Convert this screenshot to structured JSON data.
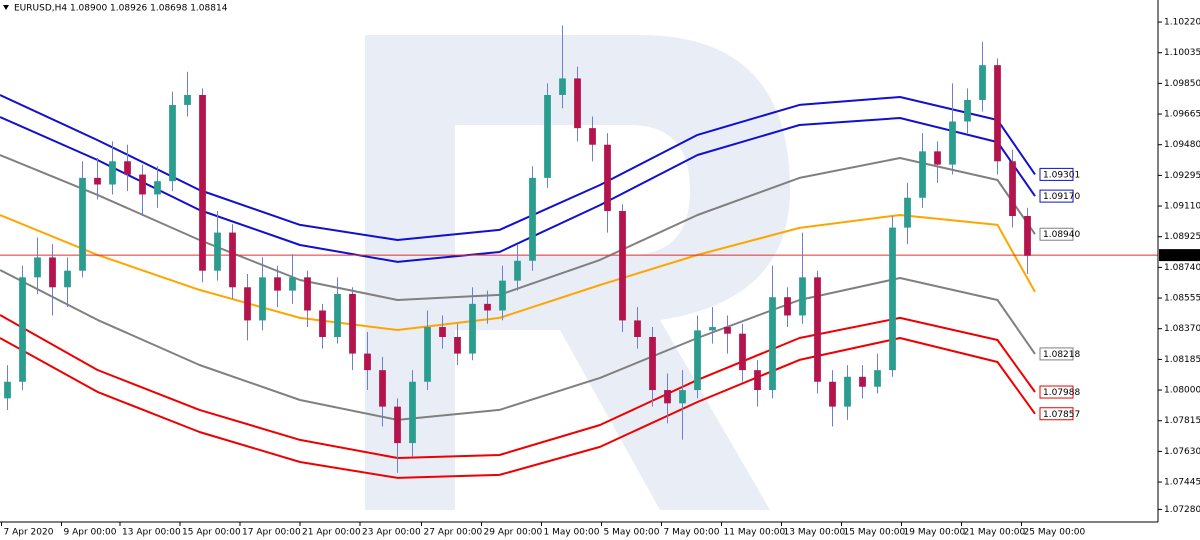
{
  "chart_data": {
    "type": "candlestick",
    "header": "EURUSD,H4  1.08900 1.08926 1.08698 1.08814",
    "ylim": [
      1.07204,
      1.10353
    ],
    "yticks": [
      {
        "value": 1.1022,
        "label": "1.10220"
      },
      1.10035,
      {
        "value": 1.0985,
        "label": "1.09850"
      },
      1.09665,
      {
        "value": 1.0948,
        "label": "1.09480"
      },
      1.09295,
      {
        "value": 1.0911,
        "label": "1.09110"
      },
      1.08925,
      {
        "value": 1.0874,
        "label": "1.08740"
      },
      1.08555,
      {
        "value": 1.0837,
        "label": "1.08370"
      },
      1.08185,
      {
        "value": 1.08,
        "label": "1.08000"
      },
      1.07815,
      {
        "value": 1.0763,
        "label": "1.07630"
      },
      1.07445,
      {
        "value": 1.0728,
        "label": "1.07280"
      }
    ],
    "xlim": [
      -0.5,
      76.7
    ],
    "xticks": [
      {
        "value": -0.4,
        "label": "7 Apr 2020"
      },
      {
        "value": 3.6,
        "label": "9 Apr 00:00"
      },
      {
        "value": 7.5,
        "label": "13 Apr 00:00"
      },
      {
        "value": 11.5,
        "label": "15 Apr 00:00"
      },
      {
        "value": 15.5,
        "label": "17 Apr 00:00"
      },
      {
        "value": 19.5,
        "label": "21 Apr 00:00"
      },
      {
        "value": 23.5,
        "label": "23 Apr 00:00"
      },
      {
        "value": 27.6,
        "label": "27 Apr 00:00"
      },
      {
        "value": 31.6,
        "label": "29 Apr 00:00"
      },
      {
        "value": 35.6,
        "label": "1 May 00:00"
      },
      {
        "value": 39.6,
        "label": "5 May 00:00"
      },
      {
        "value": 43.6,
        "label": "7 May 00:00"
      },
      {
        "value": 47.6,
        "label": "11 May 00:00"
      },
      {
        "value": 51.6,
        "label": "13 May 00:00"
      },
      {
        "value": 55.6,
        "label": "15 May 00:00"
      },
      {
        "value": 59.6,
        "label": "19 May 00:00"
      },
      {
        "value": 63.6,
        "label": "21 May 00:00"
      },
      {
        "value": 67.6,
        "label": "25 May 00:00"
      }
    ],
    "up_color": "#2a9d8f",
    "down_color": "#b5134b",
    "wick_color": "#6f7fd0",
    "open": [
      1.0795,
      1.0805,
      1.0868,
      1.088,
      1.0862,
      1.0872,
      1.0928,
      1.0924,
      1.0938,
      1.093,
      1.0918,
      1.0926,
      1.0972,
      1.0978,
      1.0872,
      1.0895,
      1.0862,
      1.0842,
      1.0868,
      1.086,
      1.0868,
      1.0848,
      1.0832,
      1.0858,
      1.0822,
      1.0812,
      1.079,
      1.0768,
      1.0805,
      1.0838,
      1.0832,
      1.0822,
      1.0852,
      1.0848,
      1.0866,
      1.0878,
      1.0928,
      1.0978,
      1.0988,
      1.0958,
      1.0948,
      1.0908,
      1.0842,
      1.0832,
      1.08,
      1.0792,
      1.08,
      1.0836,
      1.0838,
      1.0834,
      1.0812,
      1.08,
      1.0856,
      1.0845,
      1.0868,
      1.0805,
      1.079,
      1.0808,
      1.0802,
      1.0812,
      1.0898,
      1.0916,
      1.0944,
      1.0936,
      1.0962,
      1.0975,
      1.0996,
      1.0938,
      1.0905
    ],
    "high": [
      1.0815,
      1.0875,
      1.0892,
      1.0888,
      1.088,
      1.0938,
      1.094,
      1.095,
      1.0948,
      1.0936,
      1.0935,
      1.098,
      1.0992,
      1.0982,
      1.0908,
      1.09,
      1.087,
      1.088,
      1.0875,
      1.0882,
      1.0872,
      1.0852,
      1.0868,
      1.0862,
      1.0835,
      1.082,
      1.0795,
      1.0812,
      1.0848,
      1.0845,
      1.084,
      1.0862,
      1.086,
      1.0875,
      1.0888,
      1.0935,
      1.0985,
      1.102,
      1.0995,
      1.0965,
      1.0955,
      1.0912,
      1.085,
      1.0838,
      1.081,
      1.0812,
      1.0845,
      1.085,
      1.0845,
      1.084,
      1.0818,
      1.0875,
      1.0862,
      1.0895,
      1.0872,
      1.0812,
      1.0815,
      1.0815,
      1.0822,
      1.0905,
      1.0925,
      1.0955,
      1.095,
      1.0985,
      1.0982,
      1.101,
      1.1,
      1.0945,
      1.091
    ],
    "low": [
      1.0788,
      1.08,
      1.0858,
      1.0845,
      1.085,
      1.0868,
      1.0915,
      1.0918,
      1.092,
      1.0905,
      1.091,
      1.092,
      1.0965,
      1.0865,
      1.0866,
      1.0855,
      1.083,
      1.0836,
      1.085,
      1.0852,
      1.0838,
      1.0825,
      1.0828,
      1.0812,
      1.08,
      1.0778,
      1.075,
      1.076,
      1.08,
      1.0825,
      1.0815,
      1.0818,
      1.084,
      1.0842,
      1.086,
      1.0872,
      1.0922,
      1.097,
      1.095,
      1.0938,
      1.0895,
      1.0835,
      1.0825,
      1.079,
      1.078,
      1.077,
      1.0795,
      1.0828,
      1.0822,
      1.0805,
      1.079,
      1.0795,
      1.0838,
      1.084,
      1.0798,
      1.0778,
      1.0782,
      1.0795,
      1.0798,
      1.0808,
      1.0888,
      1.091,
      1.0925,
      1.093,
      1.0955,
      1.0968,
      1.093,
      1.0898,
      1.087
    ],
    "close": [
      1.0805,
      1.0868,
      1.088,
      1.0862,
      1.0872,
      1.0928,
      1.0924,
      1.0938,
      1.093,
      1.0918,
      1.0926,
      1.0972,
      1.0978,
      1.0872,
      1.0895,
      1.0862,
      1.0842,
      1.0868,
      1.086,
      1.0868,
      1.0848,
      1.0832,
      1.0858,
      1.0822,
      1.0812,
      1.079,
      1.0768,
      1.0805,
      1.0838,
      1.0832,
      1.0822,
      1.0852,
      1.0848,
      1.0866,
      1.0878,
      1.0928,
      1.0978,
      1.0988,
      1.0958,
      1.0948,
      1.0908,
      1.0842,
      1.0832,
      1.08,
      1.0792,
      1.08,
      1.0836,
      1.0838,
      1.0834,
      1.0812,
      1.08,
      1.0856,
      1.0845,
      1.0868,
      1.0805,
      1.079,
      1.0808,
      1.0802,
      1.0812,
      1.0898,
      1.0916,
      1.0944,
      1.0936,
      1.0962,
      1.0975,
      1.0996,
      1.0938,
      1.0905,
      1.0881
    ],
    "bands": {
      "x": [
        -0.5,
        6,
        12.8,
        19.5,
        26,
        32.8,
        39.5,
        46,
        52.8,
        59.5,
        66,
        68.5
      ],
      "lines": [
        {
          "color": "#1010d0",
          "values": [
            1.0978,
            1.09508,
            1.09207,
            1.08996,
            1.08905,
            1.08966,
            1.09237,
            1.09539,
            1.0972,
            1.09768,
            1.09629,
            1.09301
          ]
        },
        {
          "color": "#1010d0",
          "values": [
            1.09647,
            1.09388,
            1.09086,
            1.08875,
            1.08773,
            1.08833,
            1.09116,
            1.09418,
            1.09599,
            1.09641,
            1.09496,
            1.0917
          ]
        },
        {
          "color": "#808080",
          "values": [
            1.09418,
            1.09177,
            1.08905,
            1.08664,
            1.08543,
            1.08574,
            1.08785,
            1.09056,
            1.0928,
            1.094,
            1.09267,
            1.0894
          ]
        },
        {
          "color": "#ffa500",
          "values": [
            1.09056,
            1.08815,
            1.08604,
            1.08435,
            1.08362,
            1.08435,
            1.08634,
            1.08815,
            1.08978,
            1.09056,
            1.08996,
            1.08592
          ]
        },
        {
          "color": "#808080",
          "values": [
            1.08724,
            1.08423,
            1.08151,
            1.0794,
            1.0782,
            1.0788,
            1.08073,
            1.08314,
            1.08543,
            1.08676,
            1.08543,
            1.08218
          ]
        },
        {
          "color": "#ee0000",
          "values": [
            1.08453,
            1.08121,
            1.0788,
            1.07699,
            1.0759,
            1.07608,
            1.07789,
            1.08061,
            1.08314,
            1.08435,
            1.08302,
            1.07988
          ]
        },
        {
          "color": "#ee0000",
          "values": [
            1.08314,
            1.07989,
            1.07747,
            1.07566,
            1.0747,
            1.07488,
            1.07657,
            1.07928,
            1.08182,
            1.08314,
            1.08169,
            1.07857
          ]
        }
      ]
    },
    "price_labels": [
      {
        "value": 1.09301,
        "color": "#1010d0"
      },
      {
        "value": 1.0917,
        "label": "1.09170",
        "color": "#1010d0"
      },
      {
        "value": 1.0894,
        "label": "1.08940",
        "color": "#808080"
      },
      {
        "value": 1.08218,
        "color": "#808080"
      },
      {
        "value": 1.07988,
        "color": "#ee0000"
      },
      {
        "value": 1.07857,
        "color": "#ee0000"
      }
    ],
    "current_price": {
      "value": 1.08814,
      "color": "#e03030"
    }
  }
}
